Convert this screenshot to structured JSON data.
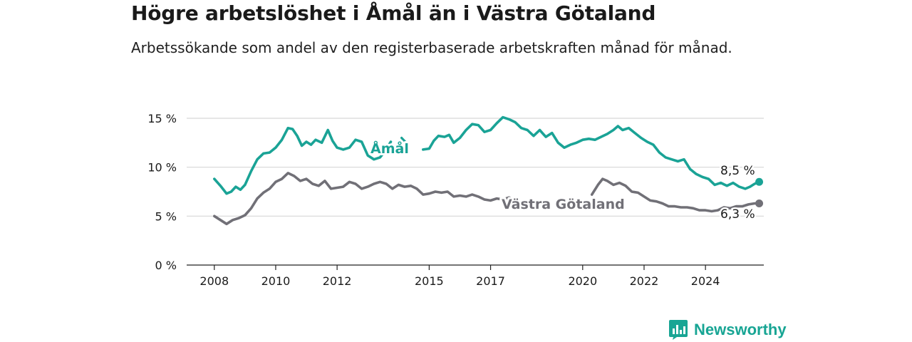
{
  "title": "Högre arbetslöshet i Åmål än i Västra Götaland",
  "subtitle": "Arbetssökande som andel av den registerbaserade arbetskraften månad för månad.",
  "brand": {
    "name": "Newsworthy"
  },
  "colors": {
    "amal": "#1aa396",
    "vg": "#717077",
    "grid": "#d7d7d7",
    "axis": "#222222",
    "text": "#1a1a1a"
  },
  "chart_data": {
    "type": "line",
    "x_ticks": [
      2008,
      2010,
      2012,
      2015,
      2017,
      2020,
      2022,
      2024
    ],
    "y_ticks": [
      0,
      5,
      10,
      15
    ],
    "y_tick_labels": [
      "0 %",
      "5 %",
      "10 %",
      "15 %"
    ],
    "xlim": [
      2007.1,
      2025.9
    ],
    "ylim": [
      0,
      15
    ],
    "grid": true,
    "series": [
      {
        "name": "Åmål",
        "color": "#1aa396",
        "last_label": "8,5 %",
        "segments": [
          [
            [
              2008.0,
              8.8
            ],
            [
              2008.2,
              8.1
            ],
            [
              2008.4,
              7.3
            ],
            [
              2008.55,
              7.5
            ],
            [
              2008.7,
              8.0
            ],
            [
              2008.85,
              7.7
            ],
            [
              2009.0,
              8.2
            ],
            [
              2009.2,
              9.6
            ],
            [
              2009.4,
              10.8
            ],
            [
              2009.6,
              11.4
            ],
            [
              2009.8,
              11.5
            ],
            [
              2010.0,
              12.0
            ],
            [
              2010.2,
              12.8
            ],
            [
              2010.4,
              14.0
            ],
            [
              2010.55,
              13.9
            ],
            [
              2010.7,
              13.2
            ],
            [
              2010.85,
              12.2
            ],
            [
              2011.0,
              12.6
            ],
            [
              2011.15,
              12.3
            ],
            [
              2011.3,
              12.8
            ],
            [
              2011.5,
              12.5
            ],
            [
              2011.7,
              13.8
            ],
            [
              2011.85,
              12.7
            ],
            [
              2012.0,
              12.0
            ],
            [
              2012.2,
              11.8
            ],
            [
              2012.4,
              12.0
            ],
            [
              2012.6,
              12.8
            ],
            [
              2012.8,
              12.6
            ],
            [
              2013.0,
              11.2
            ],
            [
              2013.2,
              10.8
            ],
            [
              2013.4,
              11.0
            ],
            [
              2013.55,
              11.6
            ],
            [
              2013.75,
              12.6
            ]
          ],
          [
            [
              2014.8,
              11.8
            ],
            [
              2015.0,
              11.9
            ],
            [
              2015.15,
              12.7
            ],
            [
              2015.3,
              13.2
            ],
            [
              2015.5,
              13.1
            ],
            [
              2015.65,
              13.3
            ],
            [
              2015.8,
              12.5
            ],
            [
              2016.0,
              13.0
            ],
            [
              2016.2,
              13.8
            ],
            [
              2016.4,
              14.4
            ],
            [
              2016.6,
              14.3
            ],
            [
              2016.8,
              13.6
            ],
            [
              2017.0,
              13.8
            ],
            [
              2017.2,
              14.5
            ],
            [
              2017.4,
              15.1
            ],
            [
              2017.6,
              14.9
            ],
            [
              2017.8,
              14.6
            ],
            [
              2018.0,
              14.0
            ],
            [
              2018.2,
              13.8
            ],
            [
              2018.4,
              13.2
            ],
            [
              2018.6,
              13.8
            ],
            [
              2018.8,
              13.1
            ],
            [
              2019.0,
              13.5
            ],
            [
              2019.2,
              12.5
            ],
            [
              2019.4,
              12.0
            ],
            [
              2019.6,
              12.3
            ],
            [
              2019.8,
              12.5
            ],
            [
              2020.0,
              12.8
            ],
            [
              2020.2,
              12.9
            ],
            [
              2020.4,
              12.8
            ],
            [
              2020.6,
              13.1
            ],
            [
              2020.8,
              13.4
            ],
            [
              2021.0,
              13.8
            ],
            [
              2021.15,
              14.2
            ],
            [
              2021.3,
              13.8
            ],
            [
              2021.5,
              14.0
            ],
            [
              2021.7,
              13.5
            ],
            [
              2021.9,
              13.0
            ],
            [
              2022.1,
              12.6
            ],
            [
              2022.3,
              12.3
            ],
            [
              2022.5,
              11.5
            ],
            [
              2022.7,
              11.0
            ],
            [
              2022.9,
              10.8
            ],
            [
              2023.1,
              10.6
            ],
            [
              2023.3,
              10.8
            ],
            [
              2023.5,
              9.8
            ],
            [
              2023.7,
              9.3
            ],
            [
              2023.9,
              9.0
            ],
            [
              2024.1,
              8.8
            ],
            [
              2024.3,
              8.2
            ],
            [
              2024.5,
              8.4
            ],
            [
              2024.7,
              8.1
            ],
            [
              2024.9,
              8.4
            ],
            [
              2025.1,
              8.0
            ],
            [
              2025.3,
              7.8
            ],
            [
              2025.45,
              8.0
            ],
            [
              2025.6,
              8.3
            ],
            [
              2025.75,
              8.5
            ]
          ]
        ],
        "fragment": [
          [
            2014.1,
            13.0
          ],
          [
            2014.25,
            12.5
          ]
        ]
      },
      {
        "name": "Västra Götaland",
        "color": "#717077",
        "last_label": "6,3 %",
        "segments": [
          [
            [
              2008.0,
              5.0
            ],
            [
              2008.2,
              4.6
            ],
            [
              2008.4,
              4.2
            ],
            [
              2008.6,
              4.6
            ],
            [
              2008.8,
              4.8
            ],
            [
              2009.0,
              5.1
            ],
            [
              2009.2,
              5.8
            ],
            [
              2009.4,
              6.8
            ],
            [
              2009.6,
              7.4
            ],
            [
              2009.8,
              7.8
            ],
            [
              2010.0,
              8.5
            ],
            [
              2010.2,
              8.8
            ],
            [
              2010.4,
              9.4
            ],
            [
              2010.6,
              9.1
            ],
            [
              2010.8,
              8.6
            ],
            [
              2011.0,
              8.8
            ],
            [
              2011.2,
              8.3
            ],
            [
              2011.4,
              8.1
            ],
            [
              2011.6,
              8.6
            ],
            [
              2011.8,
              7.8
            ],
            [
              2012.0,
              7.9
            ],
            [
              2012.2,
              8.0
            ],
            [
              2012.4,
              8.5
            ],
            [
              2012.6,
              8.3
            ],
            [
              2012.8,
              7.8
            ],
            [
              2013.0,
              8.0
            ],
            [
              2013.2,
              8.3
            ],
            [
              2013.4,
              8.5
            ],
            [
              2013.6,
              8.3
            ],
            [
              2013.8,
              7.8
            ],
            [
              2014.0,
              8.2
            ],
            [
              2014.2,
              8.0
            ],
            [
              2014.4,
              8.1
            ],
            [
              2014.6,
              7.8
            ],
            [
              2014.8,
              7.2
            ],
            [
              2015.0,
              7.3
            ],
            [
              2015.2,
              7.5
            ],
            [
              2015.4,
              7.4
            ],
            [
              2015.6,
              7.5
            ],
            [
              2015.8,
              7.0
            ],
            [
              2016.0,
              7.1
            ],
            [
              2016.2,
              7.0
            ],
            [
              2016.4,
              7.2
            ],
            [
              2016.6,
              7.0
            ],
            [
              2016.8,
              6.7
            ],
            [
              2017.0,
              6.6
            ],
            [
              2017.2,
              6.8
            ],
            [
              2017.4,
              6.7
            ],
            [
              2017.6,
              6.9
            ],
            [
              2017.75,
              6.7
            ]
          ],
          [
            [
              2020.3,
              7.2
            ],
            [
              2020.5,
              8.2
            ],
            [
              2020.65,
              8.8
            ],
            [
              2020.8,
              8.6
            ],
            [
              2021.0,
              8.2
            ],
            [
              2021.2,
              8.4
            ],
            [
              2021.4,
              8.1
            ],
            [
              2021.6,
              7.5
            ],
            [
              2021.8,
              7.4
            ],
            [
              2022.0,
              7.0
            ],
            [
              2022.2,
              6.6
            ],
            [
              2022.4,
              6.5
            ],
            [
              2022.6,
              6.3
            ],
            [
              2022.8,
              6.0
            ],
            [
              2023.0,
              6.0
            ],
            [
              2023.2,
              5.9
            ],
            [
              2023.4,
              5.9
            ],
            [
              2023.6,
              5.8
            ],
            [
              2023.8,
              5.6
            ],
            [
              2024.0,
              5.6
            ],
            [
              2024.2,
              5.5
            ],
            [
              2024.4,
              5.6
            ],
            [
              2024.6,
              5.9
            ],
            [
              2024.8,
              5.8
            ],
            [
              2025.0,
              6.0
            ],
            [
              2025.2,
              6.0
            ],
            [
              2025.4,
              6.2
            ],
            [
              2025.6,
              6.3
            ],
            [
              2025.75,
              6.3
            ]
          ]
        ]
      }
    ]
  }
}
